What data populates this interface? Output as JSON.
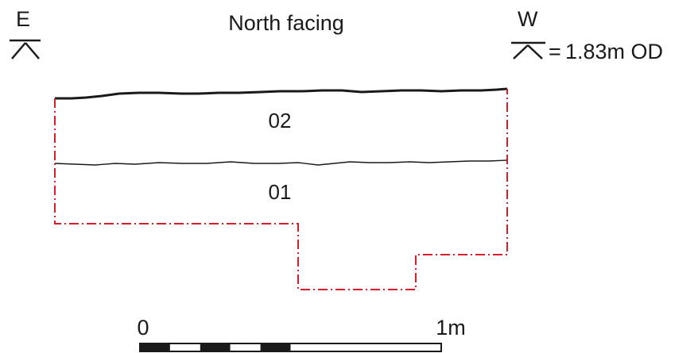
{
  "title": "North facing",
  "orientation": {
    "left_label": "E",
    "right_label": "W"
  },
  "datum": {
    "equals": "=",
    "value": "1.83m OD"
  },
  "layers": [
    {
      "id": "02"
    },
    {
      "id": "01"
    }
  ],
  "scale_bar": {
    "start_label": "0",
    "end_label": "1m",
    "segments": 10
  },
  "colors": {
    "ink": "#1a1a1a",
    "trench_edge": "#d81e2a",
    "background": "#ffffff"
  }
}
